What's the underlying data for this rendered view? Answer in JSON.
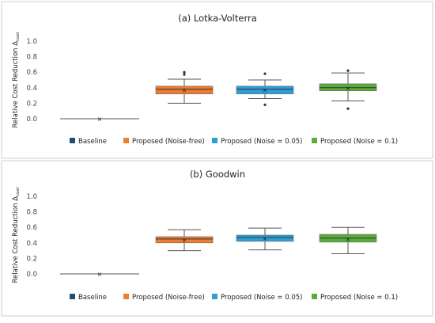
{
  "colors": {
    "baseline": "#1f4e79",
    "noise_free": "#ed7d31",
    "noise_005": "#2e9fd6",
    "noise_01": "#5aad3a",
    "median_line": "#333333",
    "whisker": "#555555",
    "panel_border": "#cccccc",
    "axis_text": "#444444"
  },
  "chart_data": [
    {
      "type": "box",
      "title": "(a) Lotka-Volterra",
      "ylabel": "Relative Cost Reduction Δ",
      "ylabel_subscript": "cost",
      "ylim": [
        0.0,
        1.0
      ],
      "yticks": [
        "0.0",
        "0.2",
        "0.4",
        "0.6",
        "0.8",
        "1.0"
      ],
      "legend_position": "bottom",
      "series": [
        {
          "name": "Baseline",
          "min": 0.0,
          "q1": 0.0,
          "median": 0.0,
          "q3": 0.0,
          "max": 0.0,
          "mean": 0.0,
          "outliers": []
        },
        {
          "name": "Proposed (Noise-free)",
          "min": 0.2,
          "q1": 0.32,
          "median": 0.38,
          "q3": 0.42,
          "max": 0.51,
          "mean": 0.37,
          "outliers": [
            0.57,
            0.6
          ]
        },
        {
          "name": "Proposed (Noise  = 0.05)",
          "min": 0.26,
          "q1": 0.32,
          "median": 0.38,
          "q3": 0.42,
          "max": 0.5,
          "mean": 0.37,
          "outliers": [
            0.58,
            0.18
          ]
        },
        {
          "name": "Proposed (Noise = 0.1)",
          "min": 0.23,
          "q1": 0.36,
          "median": 0.4,
          "q3": 0.45,
          "max": 0.59,
          "mean": 0.4,
          "outliers": [
            0.62,
            0.13
          ]
        }
      ]
    },
    {
      "type": "box",
      "title": "(b) Goodwin",
      "ylabel": "Relative Cost Reduction Δ",
      "ylabel_subscript": "cost",
      "ylim": [
        0.0,
        1.0
      ],
      "yticks": [
        "0.0",
        "0.2",
        "0.4",
        "0.6",
        "0.8",
        "1.0"
      ],
      "legend_position": "bottom",
      "series": [
        {
          "name": "Baseline",
          "min": 0.0,
          "q1": 0.0,
          "median": 0.0,
          "q3": 0.0,
          "max": 0.0,
          "mean": 0.0,
          "outliers": []
        },
        {
          "name": "Proposed (Noise-free)",
          "min": 0.3,
          "q1": 0.4,
          "median": 0.45,
          "q3": 0.48,
          "max": 0.57,
          "mean": 0.44,
          "outliers": []
        },
        {
          "name": "Proposed (Noise  = 0.05)",
          "min": 0.31,
          "q1": 0.42,
          "median": 0.47,
          "q3": 0.5,
          "max": 0.59,
          "mean": 0.46,
          "outliers": []
        },
        {
          "name": "Proposed (Noise = 0.1)",
          "min": 0.26,
          "q1": 0.41,
          "median": 0.46,
          "q3": 0.51,
          "max": 0.6,
          "mean": 0.45,
          "outliers": []
        }
      ]
    }
  ]
}
